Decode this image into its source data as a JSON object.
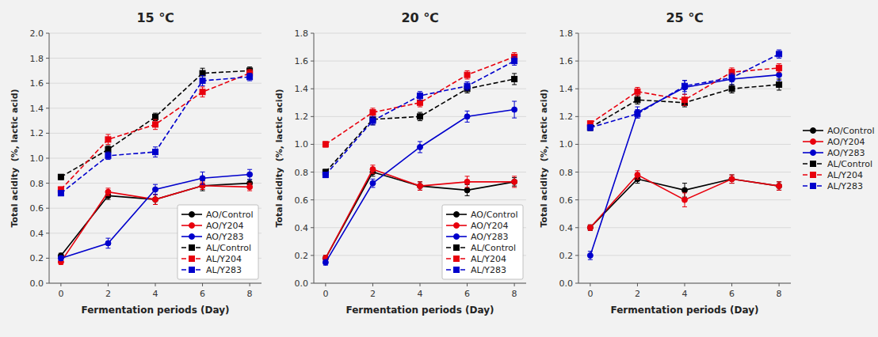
{
  "chart_data": [
    {
      "type": "line",
      "title": "15 ℃",
      "xlabel": "Fermentation periods (Day)",
      "ylabel": "Total acidity  (%, lactic acid)",
      "x": [
        0,
        2,
        4,
        6,
        8
      ],
      "xlim": [
        -0.5,
        8.5
      ],
      "xticks": [
        0,
        2,
        4,
        6,
        8
      ],
      "ylim": [
        0.0,
        2.0
      ],
      "yticks": [
        {
          "value": 0.0,
          "label": "0.0"
        },
        0.2,
        0.4,
        0.6,
        0.8,
        {
          "value": 1.0,
          "label": "1.0"
        },
        1.2,
        1.4,
        1.6,
        1.8,
        {
          "value": 2.0,
          "label": "2.0"
        }
      ],
      "grid": true,
      "legend": "lower right",
      "series": [
        {
          "name": "AO/Control",
          "values": [
            0.22,
            0.7,
            0.67,
            0.78,
            0.8
          ],
          "errors": [
            0.02,
            0.03,
            0.04,
            0.04,
            0.03
          ],
          "color": "#000000",
          "line_style": "solid",
          "marker": "circle"
        },
        {
          "name": "AO/Y204",
          "values": [
            0.17,
            0.73,
            0.67,
            0.78,
            0.77
          ],
          "errors": [
            0.02,
            0.03,
            0.04,
            0.03,
            0.03
          ],
          "color": "#e8000d",
          "line_style": "solid",
          "marker": "circle"
        },
        {
          "name": "AO/Y283",
          "values": [
            0.2,
            0.32,
            0.75,
            0.84,
            0.87
          ],
          "errors": [
            0.02,
            0.04,
            0.04,
            0.05,
            0.04
          ],
          "color": "#0000cc",
          "line_style": "solid",
          "marker": "circle"
        },
        {
          "name": "AL/Control",
          "values": [
            0.85,
            1.07,
            1.33,
            1.68,
            1.7
          ],
          "errors": [
            0.02,
            0.03,
            0.03,
            0.04,
            0.03
          ],
          "color": "#000000",
          "line_style": "dashed",
          "marker": "square"
        },
        {
          "name": "AL/Y204",
          "values": [
            0.75,
            1.15,
            1.27,
            1.53,
            1.68
          ],
          "errors": [
            0.02,
            0.04,
            0.04,
            0.04,
            0.03
          ],
          "color": "#e8000d",
          "line_style": "dashed",
          "marker": "square"
        },
        {
          "name": "AL/Y283",
          "values": [
            0.72,
            1.02,
            1.05,
            1.62,
            1.65
          ],
          "errors": [
            0.02,
            0.03,
            0.04,
            0.04,
            0.03
          ],
          "color": "#0000cc",
          "line_style": "dashed",
          "marker": "square"
        }
      ]
    },
    {
      "type": "line",
      "title": "20 ℃",
      "xlabel": "Fermentation periods (Day)",
      "ylabel": "Total acidity  (%, lactic acid)",
      "x": [
        0,
        2,
        4,
        6,
        8
      ],
      "xlim": [
        -0.5,
        8.5
      ],
      "xticks": [
        0,
        2,
        4,
        6,
        8
      ],
      "ylim": [
        0.0,
        1.8
      ],
      "yticks": [
        {
          "value": 0.0,
          "label": "0.0"
        },
        0.2,
        0.4,
        0.6,
        0.8,
        {
          "value": 1.0,
          "label": "1.0"
        },
        1.2,
        1.4,
        1.6,
        1.8
      ],
      "grid": true,
      "legend": "lower right",
      "series": [
        {
          "name": "AO/Control",
          "values": [
            0.18,
            0.8,
            0.7,
            0.67,
            0.73
          ],
          "errors": [
            0.02,
            0.03,
            0.03,
            0.04,
            0.03
          ],
          "color": "#000000",
          "line_style": "solid",
          "marker": "circle"
        },
        {
          "name": "AO/Y204",
          "values": [
            0.18,
            0.82,
            0.7,
            0.73,
            0.73
          ],
          "errors": [
            0.02,
            0.03,
            0.03,
            0.04,
            0.04
          ],
          "color": "#e8000d",
          "line_style": "solid",
          "marker": "circle"
        },
        {
          "name": "AO/Y283",
          "values": [
            0.15,
            0.72,
            0.98,
            1.2,
            1.25
          ],
          "errors": [
            0.02,
            0.03,
            0.04,
            0.04,
            0.06
          ],
          "color": "#0000cc",
          "line_style": "solid",
          "marker": "circle"
        },
        {
          "name": "AL/Control",
          "values": [
            0.8,
            1.18,
            1.2,
            1.4,
            1.47
          ],
          "errors": [
            0.02,
            0.04,
            0.03,
            0.03,
            0.04
          ],
          "color": "#000000",
          "line_style": "dashed",
          "marker": "square"
        },
        {
          "name": "AL/Y204",
          "values": [
            1.0,
            1.23,
            1.3,
            1.5,
            1.63
          ],
          "errors": [
            0.02,
            0.03,
            0.03,
            0.03,
            0.03
          ],
          "color": "#e8000d",
          "line_style": "dashed",
          "marker": "square"
        },
        {
          "name": "AL/Y283",
          "values": [
            0.78,
            1.17,
            1.35,
            1.42,
            1.6
          ],
          "errors": [
            0.02,
            0.03,
            0.03,
            0.03,
            0.03
          ],
          "color": "#0000cc",
          "line_style": "dashed",
          "marker": "square"
        }
      ]
    },
    {
      "type": "line",
      "title": "25 ℃",
      "xlabel": "Fermentation periods (Day)",
      "ylabel": "Total acidity  (%, lactic acid)",
      "x": [
        0,
        2,
        4,
        6,
        8
      ],
      "xlim": [
        -0.5,
        8.5
      ],
      "xticks": [
        0,
        2,
        4,
        6,
        8
      ],
      "ylim": [
        0.0,
        1.8
      ],
      "yticks": [
        {
          "value": 0.0,
          "label": "0.0"
        },
        0.2,
        0.4,
        0.6,
        0.8,
        {
          "value": 1.0,
          "label": "1.0"
        },
        1.2,
        1.4,
        1.6,
        1.8
      ],
      "grid": true,
      "legend": "outside right",
      "series": [
        {
          "name": "AO/Control",
          "values": [
            0.4,
            0.75,
            0.67,
            0.75,
            0.7
          ],
          "errors": [
            0.02,
            0.03,
            0.05,
            0.03,
            0.03
          ],
          "color": "#000000",
          "line_style": "solid",
          "marker": "circle"
        },
        {
          "name": "AO/Y204",
          "values": [
            0.4,
            0.78,
            0.6,
            0.75,
            0.7
          ],
          "errors": [
            0.02,
            0.03,
            0.05,
            0.03,
            0.03
          ],
          "color": "#e8000d",
          "line_style": "solid",
          "marker": "circle"
        },
        {
          "name": "AO/Y283",
          "values": [
            0.2,
            1.23,
            1.41,
            1.47,
            1.5
          ],
          "errors": [
            0.03,
            0.04,
            0.05,
            0.04,
            0.04
          ],
          "color": "#0000cc",
          "line_style": "solid",
          "marker": "circle"
        },
        {
          "name": "AL/Control",
          "values": [
            1.12,
            1.32,
            1.3,
            1.4,
            1.43
          ],
          "errors": [
            0.02,
            0.03,
            0.03,
            0.03,
            0.04
          ],
          "color": "#000000",
          "line_style": "dashed",
          "marker": "square"
        },
        {
          "name": "AL/Y204",
          "values": [
            1.15,
            1.38,
            1.32,
            1.52,
            1.55
          ],
          "errors": [
            0.02,
            0.03,
            0.04,
            0.03,
            0.03
          ],
          "color": "#e8000d",
          "line_style": "dashed",
          "marker": "square"
        },
        {
          "name": "AL/Y283",
          "values": [
            1.12,
            1.22,
            1.42,
            1.48,
            1.65
          ],
          "errors": [
            0.02,
            0.03,
            0.04,
            0.03,
            0.03
          ],
          "color": "#0000cc",
          "line_style": "dashed",
          "marker": "square"
        }
      ]
    }
  ]
}
